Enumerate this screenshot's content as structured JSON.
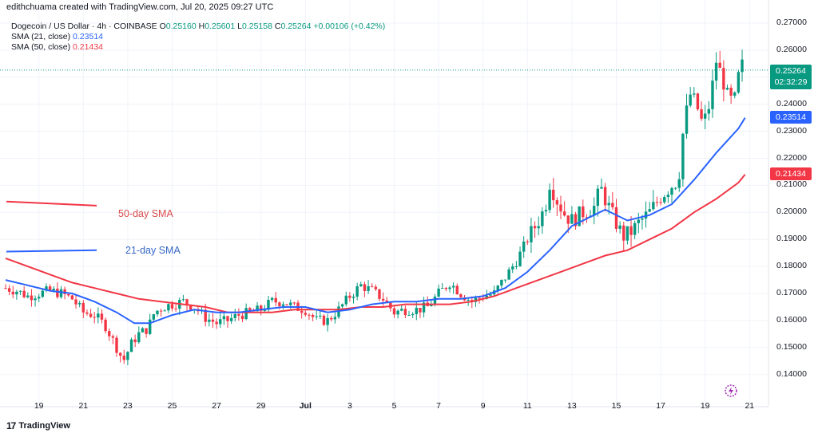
{
  "header": {
    "author_line": "edithchuama created with TradingView.com, Jul 20, 2025 09:27 UTC",
    "symbol_line": "Dogecoin / US Dollar · 4h · COINBASE",
    "ohlc": [
      {
        "label": "O",
        "value": "0.25160"
      },
      {
        "label": "H",
        "value": "0.25601"
      },
      {
        "label": "L",
        "value": "0.25158"
      },
      {
        "label": "C",
        "value": "0.25264"
      }
    ],
    "change": "+0.00106 (+0.42%)",
    "sma21_label": "SMA (21, close)",
    "sma21_value": "0.23514",
    "sma50_label": "SMA (50, close)",
    "sma50_value": "0.21434"
  },
  "price_tag": {
    "price": "0.25264",
    "countdown": "02:32:29"
  },
  "sma_tags": {
    "sma21": "0.23514",
    "sma50": "0.21434"
  },
  "annotations": {
    "sma50": "50-day SMA",
    "sma21": "21-day SMA"
  },
  "footer": {
    "logo_text": "TradingView",
    "logo_mark": "17"
  },
  "colors": {
    "up": "#089981",
    "down": "#f23645",
    "sma21": "#2962ff",
    "sma50": "#f23645",
    "annot_sma50": "#d94b4b",
    "annot_sma21": "#3567c5"
  },
  "chart_data": {
    "type": "candlestick",
    "title": "Dogecoin / US Dollar · 4h · COINBASE",
    "ylim": [
      0.133,
      0.273
    ],
    "y_ticks": [
      "0.27000",
      "0.26000",
      "0.25000",
      "0.24000",
      "0.23000",
      "0.22000",
      "0.21000",
      "0.20000",
      "0.19000",
      "0.18000",
      "0.17000",
      "0.16000",
      "0.15000",
      "0.14000"
    ],
    "x_range_days": [
      17.5,
      37.75
    ],
    "x_ticks": [
      {
        "label": "19",
        "day": 19
      },
      {
        "label": "21",
        "day": 21
      },
      {
        "label": "23",
        "day": 23
      },
      {
        "label": "25",
        "day": 25
      },
      {
        "label": "27",
        "day": 27
      },
      {
        "label": "29",
        "day": 29
      },
      {
        "label": "Jul",
        "day": 31
      },
      {
        "label": "3",
        "day": 33
      },
      {
        "label": "5",
        "day": 35
      },
      {
        "label": "7",
        "day": 37
      },
      {
        "label": "9",
        "day": 39
      },
      {
        "label": "11",
        "day": 41
      },
      {
        "label": "13",
        "day": 43
      },
      {
        "label": "15",
        "day": 45
      },
      {
        "label": "17",
        "day": 47
      },
      {
        "label": "19",
        "day": 49
      },
      {
        "label": "21",
        "day": 51
      }
    ],
    "close_path_days": [
      [
        17.5,
        0.172
      ],
      [
        18.0,
        0.171
      ],
      [
        18.5,
        0.169
      ],
      [
        19.0,
        0.17
      ],
      [
        19.5,
        0.171
      ],
      [
        20.0,
        0.17
      ],
      [
        20.5,
        0.168
      ],
      [
        21.0,
        0.163
      ],
      [
        21.5,
        0.162
      ],
      [
        22.0,
        0.158
      ],
      [
        22.5,
        0.15
      ],
      [
        22.8,
        0.145
      ],
      [
        23.2,
        0.152
      ],
      [
        23.5,
        0.155
      ],
      [
        23.9,
        0.157
      ],
      [
        24.2,
        0.163
      ],
      [
        24.6,
        0.165
      ],
      [
        25.0,
        0.166
      ],
      [
        25.5,
        0.167
      ],
      [
        26.0,
        0.165
      ],
      [
        26.5,
        0.161
      ],
      [
        27.0,
        0.159
      ],
      [
        27.5,
        0.16
      ],
      [
        28.0,
        0.162
      ],
      [
        28.5,
        0.163
      ],
      [
        29.0,
        0.164
      ],
      [
        29.5,
        0.167
      ],
      [
        30.0,
        0.167
      ],
      [
        30.5,
        0.165
      ],
      [
        31.0,
        0.164
      ],
      [
        31.5,
        0.16
      ],
      [
        32.0,
        0.16
      ],
      [
        32.5,
        0.164
      ],
      [
        33.0,
        0.169
      ],
      [
        33.5,
        0.173
      ],
      [
        34.0,
        0.171
      ],
      [
        34.5,
        0.168
      ],
      [
        35.0,
        0.163
      ],
      [
        35.5,
        0.164
      ],
      [
        36.0,
        0.164
      ],
      [
        36.5,
        0.165
      ],
      [
        37.0,
        0.17
      ],
      [
        37.5,
        0.174
      ],
      [
        38.0,
        0.17
      ],
      [
        38.5,
        0.167
      ],
      [
        39.0,
        0.169
      ],
      [
        39.5,
        0.17
      ],
      [
        40.0,
        0.176
      ],
      [
        40.5,
        0.182
      ],
      [
        41.0,
        0.19
      ],
      [
        41.5,
        0.197
      ],
      [
        41.8,
        0.202
      ],
      [
        42.0,
        0.211
      ],
      [
        42.3,
        0.205
      ],
      [
        42.7,
        0.199
      ],
      [
        43.0,
        0.197
      ],
      [
        43.5,
        0.2
      ],
      [
        44.0,
        0.202
      ],
      [
        44.3,
        0.209
      ],
      [
        44.6,
        0.203
      ],
      [
        45.0,
        0.196
      ],
      [
        45.3,
        0.191
      ],
      [
        45.7,
        0.193
      ],
      [
        46.0,
        0.196
      ],
      [
        46.5,
        0.2
      ],
      [
        47.0,
        0.206
      ],
      [
        47.5,
        0.21
      ],
      [
        47.8,
        0.212
      ],
      [
        48.0,
        0.229
      ],
      [
        48.3,
        0.244
      ],
      [
        48.6,
        0.24
      ],
      [
        48.9,
        0.232
      ],
      [
        49.2,
        0.24
      ],
      [
        49.5,
        0.256
      ],
      [
        49.8,
        0.249
      ],
      [
        50.0,
        0.243
      ],
      [
        50.3,
        0.24
      ],
      [
        50.6,
        0.255
      ],
      [
        50.8,
        0.253
      ]
    ],
    "sma21_path": [
      [
        17.5,
        0.175
      ],
      [
        18.5,
        0.173
      ],
      [
        19.5,
        0.171
      ],
      [
        20.5,
        0.17
      ],
      [
        21.5,
        0.167
      ],
      [
        22.5,
        0.163
      ],
      [
        23.3,
        0.159
      ],
      [
        24.0,
        0.159
      ],
      [
        25.0,
        0.162
      ],
      [
        26.0,
        0.164
      ],
      [
        27.0,
        0.163
      ],
      [
        28.0,
        0.163
      ],
      [
        29.0,
        0.164
      ],
      [
        30.0,
        0.165
      ],
      [
        31.0,
        0.165
      ],
      [
        32.0,
        0.163
      ],
      [
        33.0,
        0.164
      ],
      [
        34.0,
        0.166
      ],
      [
        35.0,
        0.167
      ],
      [
        36.0,
        0.167
      ],
      [
        37.0,
        0.168
      ],
      [
        38.0,
        0.168
      ],
      [
        39.0,
        0.169
      ],
      [
        40.0,
        0.172
      ],
      [
        41.0,
        0.178
      ],
      [
        42.0,
        0.186
      ],
      [
        43.0,
        0.195
      ],
      [
        44.0,
        0.199
      ],
      [
        44.5,
        0.201
      ],
      [
        45.5,
        0.197
      ],
      [
        46.5,
        0.199
      ],
      [
        47.5,
        0.203
      ],
      [
        48.5,
        0.212
      ],
      [
        49.5,
        0.222
      ],
      [
        50.5,
        0.231
      ],
      [
        50.8,
        0.235
      ]
    ],
    "sma50_path": [
      [
        17.5,
        0.183
      ],
      [
        18.5,
        0.18
      ],
      [
        19.5,
        0.177
      ],
      [
        20.5,
        0.174
      ],
      [
        21.5,
        0.172
      ],
      [
        22.5,
        0.17
      ],
      [
        23.5,
        0.168
      ],
      [
        24.5,
        0.167
      ],
      [
        25.5,
        0.166
      ],
      [
        26.5,
        0.165
      ],
      [
        27.5,
        0.163
      ],
      [
        28.5,
        0.163
      ],
      [
        29.5,
        0.163
      ],
      [
        30.5,
        0.164
      ],
      [
        31.5,
        0.164
      ],
      [
        32.5,
        0.164
      ],
      [
        33.5,
        0.165
      ],
      [
        34.5,
        0.165
      ],
      [
        35.5,
        0.166
      ],
      [
        36.5,
        0.166
      ],
      [
        37.5,
        0.166
      ],
      [
        38.5,
        0.167
      ],
      [
        39.5,
        0.169
      ],
      [
        40.5,
        0.172
      ],
      [
        41.5,
        0.175
      ],
      [
        42.5,
        0.178
      ],
      [
        43.5,
        0.181
      ],
      [
        44.5,
        0.184
      ],
      [
        45.5,
        0.186
      ],
      [
        46.5,
        0.19
      ],
      [
        47.5,
        0.194
      ],
      [
        48.5,
        0.2
      ],
      [
        49.5,
        0.205
      ],
      [
        50.5,
        0.211
      ],
      [
        50.8,
        0.214
      ]
    ],
    "inset_lines": [
      {
        "series": "sma50",
        "values": [
          0.204,
          0.2025
        ]
      },
      {
        "series": "sma21",
        "values": [
          0.1855,
          0.186
        ]
      }
    ],
    "last_price": 0.25264,
    "legend": "top-left",
    "grid": true
  }
}
